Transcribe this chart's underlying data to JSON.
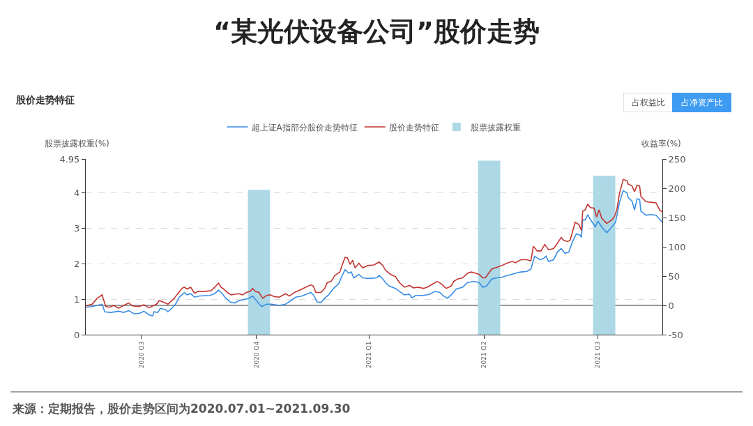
{
  "chart_data": {
    "type": "line",
    "title": "“某光伏设备公司”股价走势",
    "subtitle": "股价走势特征",
    "ylabel": "股票披露权重(%)",
    "y2label": "收益率(%)",
    "xlim": [
      "2020-07-01",
      "2021-09-30"
    ],
    "xticks": [
      {
        "value": "2020-08-14",
        "label": "2020 Q3"
      },
      {
        "value": "2020-11-13",
        "label": "2020 Q4"
      },
      {
        "value": "2021-02-10",
        "label": "2021 Q1"
      },
      {
        "value": "2021-05-12",
        "label": "2021 Q2"
      },
      {
        "value": "2021-08-10",
        "label": "2021 Q3"
      }
    ],
    "ylim": [
      0,
      4.95
    ],
    "yticks": [
      0,
      1,
      2,
      3,
      4,
      4.95
    ],
    "y2lim": [
      -50,
      250
    ],
    "y2ticks": [
      -50,
      0,
      50,
      100,
      150,
      200,
      250
    ],
    "grid": "y",
    "legend": "top",
    "marker": "none",
    "line_style": "solid",
    "ref_lines": [
      {
        "axis": "y2",
        "value": 0,
        "color": "#333333",
        "line_style": "solid"
      }
    ],
    "series": [
      {
        "name": "超上证A指部分股价走势特征",
        "axis": "y2",
        "color": "#3a8ee6",
        "x": [
          "2020-07-01",
          "2020-07-06",
          "2020-07-10",
          "2020-07-14",
          "2020-07-16",
          "2020-07-21",
          "2020-07-27",
          "2020-07-31",
          "2020-08-04",
          "2020-08-08",
          "2020-08-12",
          "2020-08-16",
          "2020-08-20",
          "2020-08-23",
          "2020-08-24",
          "2020-08-27",
          "2020-08-29",
          "2020-09-02",
          "2020-09-04",
          "2020-09-07",
          "2020-09-10",
          "2020-09-13",
          "2020-09-15",
          "2020-09-17",
          "2020-09-19",
          "2020-09-22",
          "2020-09-25",
          "2020-09-29",
          "2020-10-07",
          "2020-10-11",
          "2020-10-14",
          "2020-10-17",
          "2020-10-19",
          "2020-10-23",
          "2020-10-27",
          "2020-10-30",
          "2020-11-03",
          "2020-11-07",
          "2020-11-10",
          "2020-11-13",
          "2020-11-17",
          "2020-11-21",
          "2020-11-25",
          "2020-12-01",
          "2020-12-06",
          "2020-12-10",
          "2020-12-14",
          "2020-12-19",
          "2020-12-26",
          "2020-12-28",
          "2020-12-31",
          "2021-01-03",
          "2021-01-06",
          "2021-01-09",
          "2021-01-13",
          "2021-01-17",
          "2021-01-19",
          "2021-01-22",
          "2021-01-25",
          "2021-01-27",
          "2021-01-29",
          "2021-02-02",
          "2021-02-05",
          "2021-02-10",
          "2021-02-16",
          "2021-02-18",
          "2021-02-21",
          "2021-02-23",
          "2021-02-26",
          "2021-03-03",
          "2021-03-06",
          "2021-03-10",
          "2021-03-14",
          "2021-03-16",
          "2021-03-19",
          "2021-03-25",
          "2021-03-30",
          "2021-04-03",
          "2021-04-07",
          "2021-04-10",
          "2021-04-13",
          "2021-04-17",
          "2021-04-20",
          "2021-04-25",
          "2021-04-29",
          "2021-05-04",
          "2021-05-08",
          "2021-05-11",
          "2021-05-14",
          "2021-05-18",
          "2021-05-22",
          "2021-05-26",
          "2021-05-30",
          "2021-06-03",
          "2021-06-06",
          "2021-06-10",
          "2021-06-15",
          "2021-06-18",
          "2021-06-21",
          "2021-06-25",
          "2021-06-28",
          "2021-06-30",
          "2021-07-02",
          "2021-07-06",
          "2021-07-09",
          "2021-07-12",
          "2021-07-15",
          "2021-07-18",
          "2021-07-21",
          "2021-07-24",
          "2021-07-27",
          "2021-07-28",
          "2021-07-29",
          "2021-07-31",
          "2021-08-02",
          "2021-08-04",
          "2021-08-08",
          "2021-08-10",
          "2021-08-13",
          "2021-08-17",
          "2021-08-21",
          "2021-08-24",
          "2021-08-27",
          "2021-08-30",
          "2021-09-02",
          "2021-09-03",
          "2021-09-06",
          "2021-09-08",
          "2021-09-10",
          "2021-09-12",
          "2021-09-13",
          "2021-09-17",
          "2021-09-21",
          "2021-09-25",
          "2021-09-28",
          "2021-09-30"
        ],
        "values": [
          -3,
          -2,
          0,
          2,
          -11,
          -12,
          -10,
          -12,
          -9,
          -14,
          -14,
          -10,
          -16,
          -18,
          -11,
          -12,
          -5,
          -7,
          -11,
          -5,
          2,
          14,
          18,
          22,
          18,
          20,
          14,
          16,
          17,
          20,
          26,
          20,
          14,
          6,
          4,
          8,
          10,
          12,
          16,
          8,
          -2,
          2,
          2,
          0,
          2,
          8,
          14,
          16,
          22,
          18,
          6,
          5,
          12,
          18,
          29,
          37,
          47,
          61,
          55,
          57,
          47,
          53,
          47,
          46,
          47,
          51,
          45,
          39,
          33,
          29,
          24,
          18,
          19,
          13,
          17,
          17,
          19,
          24,
          22,
          16,
          12,
          20,
          28,
          31,
          39,
          41,
          39,
          31,
          33,
          45,
          47,
          48,
          51,
          53,
          55,
          57,
          58,
          62,
          84,
          78,
          80,
          84,
          75,
          78,
          91,
          97,
          89,
          91,
          109,
          122,
          120,
          116,
          146,
          146,
          155,
          147,
          134,
          144,
          134,
          124,
          134,
          142,
          175,
          196,
          192,
          184,
          178,
          163,
          182,
          181,
          161,
          154,
          155,
          154,
          147,
          142
        ]
      },
      {
        "name": "股价走势特征",
        "axis": "y2",
        "color": "#c23531",
        "x": [
          "2020-07-01",
          "2020-07-06",
          "2020-07-08",
          "2020-07-10",
          "2020-07-14",
          "2020-07-15",
          "2020-07-17",
          "2020-07-20",
          "2020-07-23",
          "2020-07-27",
          "2020-07-31",
          "2020-08-04",
          "2020-08-07",
          "2020-08-12",
          "2020-08-16",
          "2020-08-20",
          "2020-08-23",
          "2020-08-26",
          "2020-08-28",
          "2020-08-31",
          "2020-09-04",
          "2020-09-06",
          "2020-09-09",
          "2020-09-11",
          "2020-09-14",
          "2020-09-15",
          "2020-09-17",
          "2020-09-19",
          "2020-09-22",
          "2020-09-25",
          "2020-09-28",
          "2020-10-03",
          "2020-10-08",
          "2020-10-11",
          "2020-10-14",
          "2020-10-16",
          "2020-10-18",
          "2020-10-21",
          "2020-10-24",
          "2020-10-27",
          "2020-10-30",
          "2020-11-02",
          "2020-11-05",
          "2020-11-08",
          "2020-11-10",
          "2020-11-12",
          "2020-11-15",
          "2020-11-18",
          "2020-11-21",
          "2020-11-24",
          "2020-11-27",
          "2020-12-01",
          "2020-12-06",
          "2020-12-09",
          "2020-12-13",
          "2020-12-17",
          "2020-12-22",
          "2020-12-26",
          "2020-12-28",
          "2020-12-30",
          "2021-01-03",
          "2021-01-06",
          "2021-01-08",
          "2021-01-11",
          "2021-01-14",
          "2021-01-18",
          "2021-01-19",
          "2021-01-22",
          "2021-01-24",
          "2021-01-26",
          "2021-01-28",
          "2021-01-30",
          "2021-02-02",
          "2021-02-05",
          "2021-02-09",
          "2021-02-14",
          "2021-02-18",
          "2021-02-21",
          "2021-02-23",
          "2021-02-27",
          "2021-03-03",
          "2021-03-06",
          "2021-03-10",
          "2021-03-14",
          "2021-03-17",
          "2021-03-21",
          "2021-03-25",
          "2021-03-28",
          "2021-04-01",
          "2021-04-05",
          "2021-04-08",
          "2021-04-12",
          "2021-04-16",
          "2021-04-18",
          "2021-04-21",
          "2021-04-25",
          "2021-04-29",
          "2021-05-02",
          "2021-05-05",
          "2021-05-08",
          "2021-05-11",
          "2021-05-13",
          "2021-05-15",
          "2021-05-18",
          "2021-05-22",
          "2021-05-26",
          "2021-05-30",
          "2021-06-03",
          "2021-06-06",
          "2021-06-10",
          "2021-06-15",
          "2021-06-18",
          "2021-06-20",
          "2021-06-23",
          "2021-06-26",
          "2021-06-29",
          "2021-07-02",
          "2021-07-06",
          "2021-07-08",
          "2021-07-12",
          "2021-07-14",
          "2021-07-17",
          "2021-07-19",
          "2021-07-21",
          "2021-07-23",
          "2021-07-26",
          "2021-07-28",
          "2021-07-29",
          "2021-07-31",
          "2021-08-02",
          "2021-08-04",
          "2021-08-07",
          "2021-08-09",
          "2021-08-11",
          "2021-08-13",
          "2021-08-17",
          "2021-08-21",
          "2021-08-23",
          "2021-08-25",
          "2021-08-27",
          "2021-08-30",
          "2021-09-02",
          "2021-09-03",
          "2021-09-06",
          "2021-09-08",
          "2021-09-10",
          "2021-09-12",
          "2021-09-13",
          "2021-09-17",
          "2021-09-21",
          "2021-09-25",
          "2021-09-28",
          "2021-09-30"
        ],
        "values": [
          -1,
          2,
          7,
          12,
          18,
          10,
          -2,
          -3,
          0,
          -5,
          0,
          4,
          -1,
          -2,
          1,
          -4,
          -1,
          2,
          8,
          6,
          2,
          6,
          12,
          18,
          26,
          29,
          31,
          28,
          31,
          21,
          24,
          24,
          25,
          31,
          38,
          31,
          28,
          22,
          18,
          19,
          20,
          18,
          22,
          24,
          29,
          24,
          22,
          12,
          17,
          18,
          15,
          14,
          20,
          16,
          22,
          26,
          31,
          35,
          33,
          22,
          22,
          29,
          39,
          41,
          51,
          57,
          64,
          82,
          81,
          70,
          77,
          64,
          72,
          64,
          68,
          69,
          74,
          68,
          60,
          53,
          49,
          39,
          31,
          34,
          30,
          31,
          29,
          31,
          36,
          41,
          37,
          29,
          33,
          41,
          45,
          47,
          55,
          57,
          55,
          53,
          47,
          47,
          53,
          62,
          65,
          68,
          72,
          75,
          73,
          78,
          78,
          76,
          101,
          93,
          93,
          104,
          95,
          97,
          103,
          116,
          111,
          109,
          111,
          126,
          142,
          138,
          128,
          161,
          163,
          173,
          167,
          166,
          151,
          163,
          149,
          140,
          146,
          151,
          163,
          190,
          215,
          213,
          207,
          204,
          194,
          205,
          204,
          186,
          177,
          176,
          175,
          162,
          160
        ]
      },
      {
        "name": "股票披露权重",
        "type": "bar",
        "color": "#add8e6",
        "x": [
          "2020-11-15",
          "2021-05-16",
          "2021-08-15"
        ],
        "values": [
          4.08,
          4.9,
          4.48
        ]
      }
    ],
    "annotations": [
      "占权益比",
      "占净资产比",
      "来源：定期报告，股价走势区间为2020.07.01~2021.09.30"
    ]
  }
}
